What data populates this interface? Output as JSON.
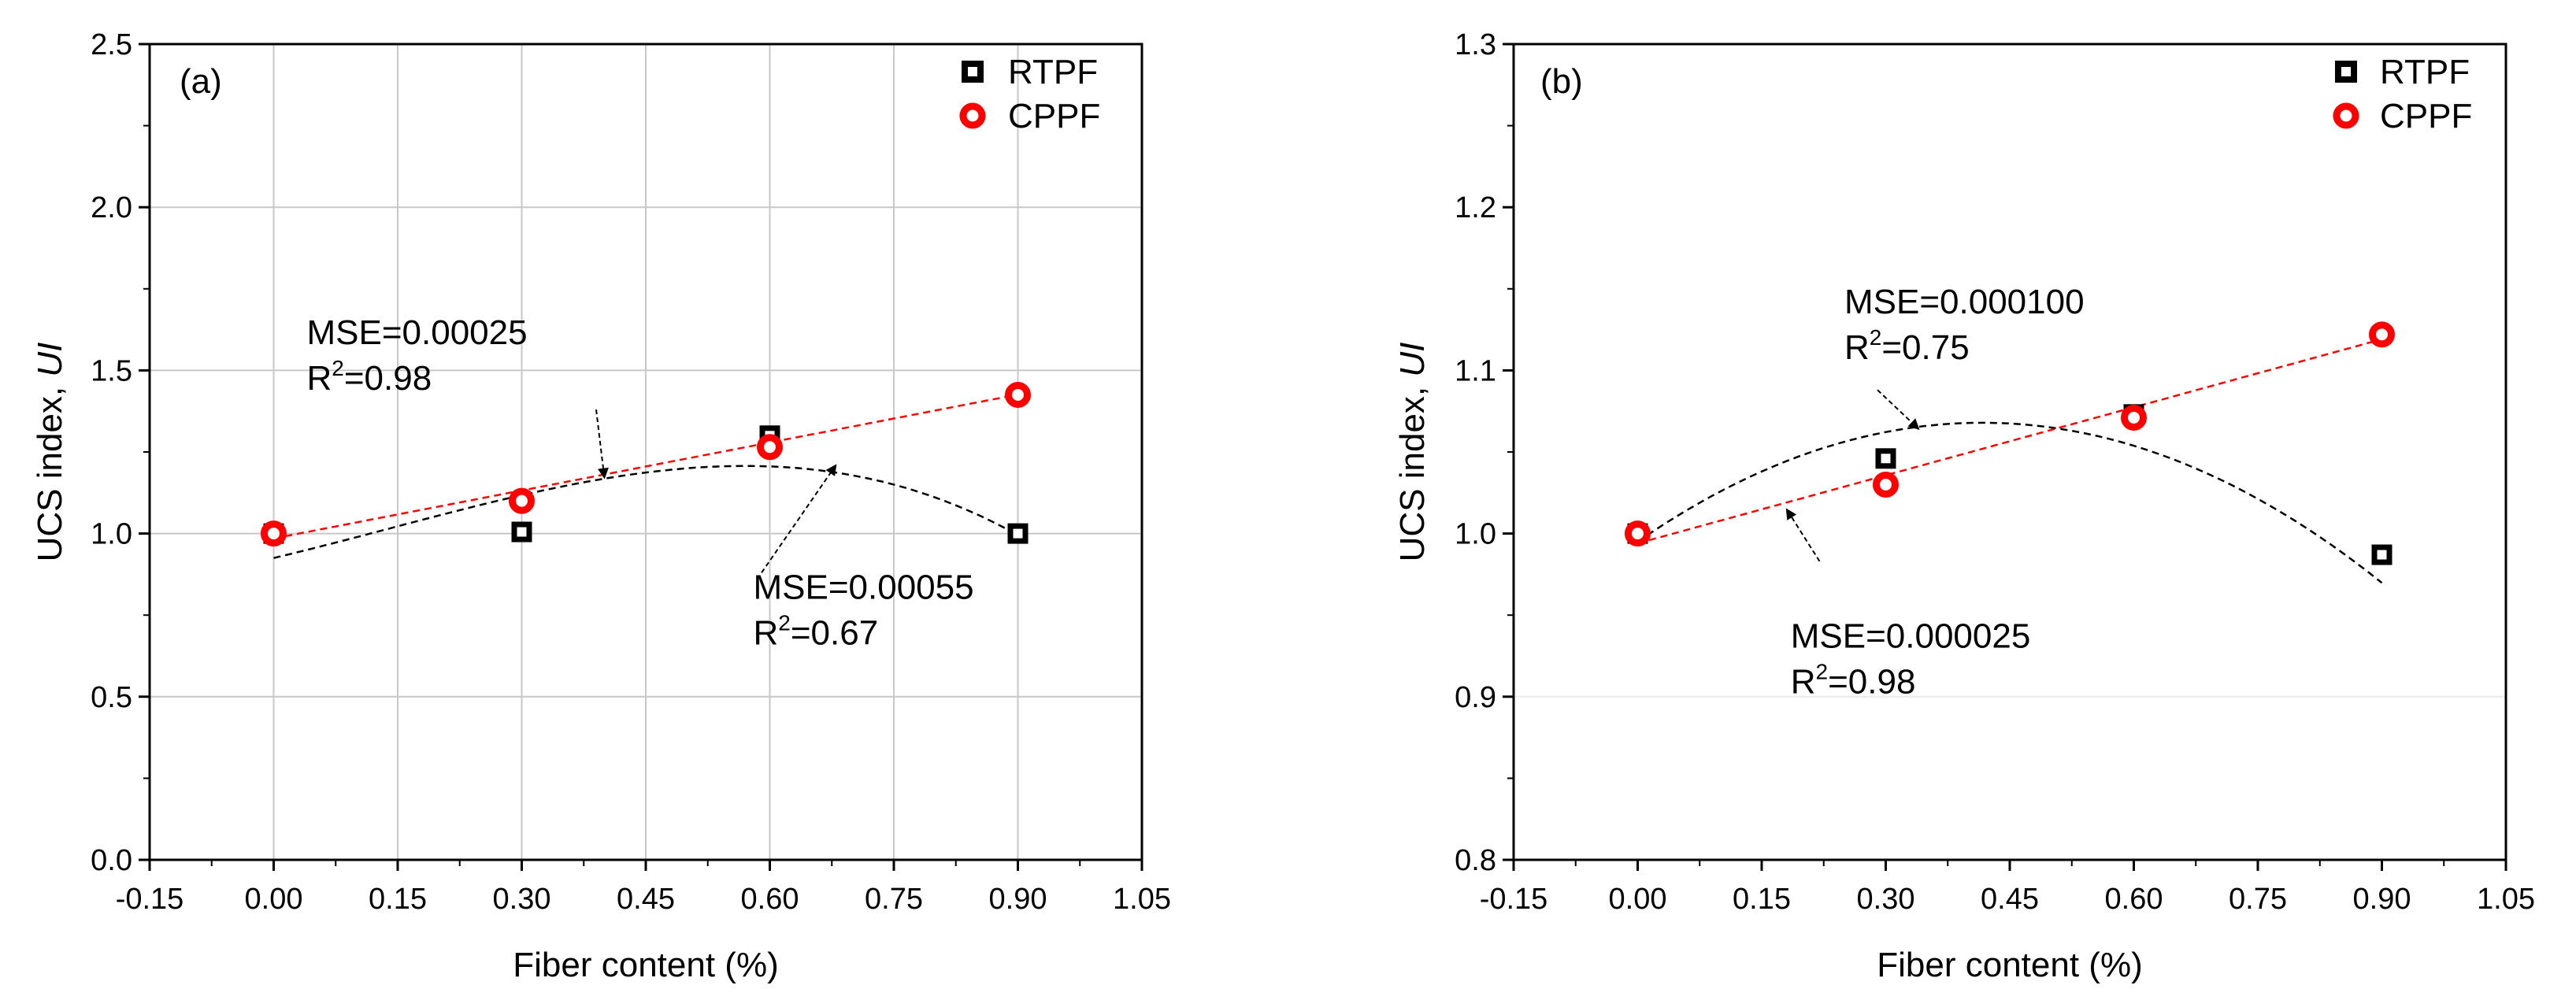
{
  "chart_data": [
    {
      "type": "scatter",
      "panel_label": "(a)",
      "xlabel": "Fiber content (%)",
      "ylabel": "UCS index, ",
      "ylabel_italic": "UI",
      "xlim": [
        -0.15,
        1.05
      ],
      "ylim": [
        0.0,
        2.5
      ],
      "xticks": [
        -0.15,
        0.0,
        0.15,
        0.3,
        0.45,
        0.6,
        0.75,
        0.9,
        1.05
      ],
      "xtick_labels": [
        "-0.15",
        "0.00",
        "0.15",
        "0.30",
        "0.45",
        "0.60",
        "0.75",
        "0.90",
        "1.05"
      ],
      "yticks": [
        0.0,
        0.5,
        1.0,
        1.5,
        2.0,
        2.5
      ],
      "ytick_labels": [
        "0.0",
        "0.5",
        "1.0",
        "1.5",
        "2.0",
        "2.5"
      ],
      "grid": true,
      "series": [
        {
          "name": "RTPF",
          "marker": "square",
          "color": "#000000",
          "x": [
            0.0,
            0.3,
            0.6,
            0.9
          ],
          "y": [
            1.0,
            1.005,
            1.3,
            1.0
          ],
          "fit": {
            "type": "polynomial",
            "coeffs": [
              0.925,
              0.6,
              0.5,
              -1.2
            ],
            "x_range": [
              0.0,
              0.9
            ],
            "color": "#000000"
          }
        },
        {
          "name": "CPPF",
          "marker": "circle",
          "color": "#ff0000",
          "x": [
            0.0,
            0.3,
            0.6,
            0.9
          ],
          "y": [
            1.0,
            1.1,
            1.265,
            1.425
          ],
          "fit": {
            "type": "polynomial",
            "coeffs": [
              0.985,
              0.49
            ],
            "x_range": [
              0.0,
              0.9
            ],
            "color": "#ff0000"
          }
        }
      ],
      "annotations": [
        {
          "line1": "MSE=0.00025",
          "r2_prefix": "R",
          "r2_sup": "2",
          "r2_value": "=0.98",
          "x": 0.04,
          "y": 1.58,
          "arrow_from": [
            0.39,
            1.38
          ],
          "arrow_to": [
            0.4,
            1.17
          ]
        },
        {
          "line1": "MSE=0.00055",
          "r2_prefix": "R",
          "r2_sup": "2",
          "r2_value": "=0.67",
          "x": 0.58,
          "y": 0.8,
          "arrow_from": [
            0.59,
            0.88
          ],
          "arrow_to": [
            0.68,
            1.21
          ]
        }
      ]
    },
    {
      "type": "scatter",
      "panel_label": "(b)",
      "xlabel": "Fiber content (%)",
      "ylabel": "UCS index, ",
      "ylabel_italic": "UI",
      "xlim": [
        -0.15,
        1.05
      ],
      "ylim": [
        0.8,
        1.3
      ],
      "xticks": [
        -0.15,
        0.0,
        0.15,
        0.3,
        0.45,
        0.6,
        0.75,
        0.9,
        1.05
      ],
      "xtick_labels": [
        "-0.15",
        "0.00",
        "0.15",
        "0.30",
        "0.45",
        "0.60",
        "0.75",
        "0.90",
        "1.05"
      ],
      "yticks": [
        0.8,
        0.9,
        1.0,
        1.1,
        1.2,
        1.3
      ],
      "ytick_labels": [
        "0.8",
        "0.9",
        "1.0",
        "1.1",
        "1.2",
        "1.3"
      ],
      "grid": false,
      "series": [
        {
          "name": "RTPF",
          "marker": "square",
          "color": "#000000",
          "x": [
            0.0,
            0.3,
            0.6,
            0.9
          ],
          "y": [
            1.0,
            1.046,
            1.073,
            0.987
          ],
          "fit": {
            "type": "polynomial",
            "coeffs": [
              0.995,
              0.35,
              -0.42
            ],
            "x_range": [
              0.0,
              0.9
            ],
            "color": "#000000"
          }
        },
        {
          "name": "CPPF",
          "marker": "circle",
          "color": "#ff0000",
          "x": [
            0.0,
            0.3,
            0.6,
            0.9
          ],
          "y": [
            1.0,
            1.03,
            1.071,
            1.122
          ],
          "fit": {
            "type": "polynomial",
            "coeffs": [
              0.994,
              0.139
            ],
            "x_range": [
              0.0,
              0.9
            ],
            "color": "#ff0000"
          }
        }
      ],
      "annotations": [
        {
          "line1": "MSE=0.000100",
          "r2_prefix": "R",
          "r2_sup": "2",
          "r2_value": "=0.75",
          "x": 0.25,
          "y": 1.135,
          "arrow_from": [
            0.29,
            1.088
          ],
          "arrow_to": [
            0.34,
            1.064
          ]
        },
        {
          "line1": "MSE=0.000025",
          "r2_prefix": "R",
          "r2_sup": "2",
          "r2_value": "=0.98",
          "x": 0.185,
          "y": 0.93,
          "arrow_from": [
            0.22,
            0.983
          ],
          "arrow_to": [
            0.18,
            1.015
          ]
        }
      ]
    }
  ]
}
